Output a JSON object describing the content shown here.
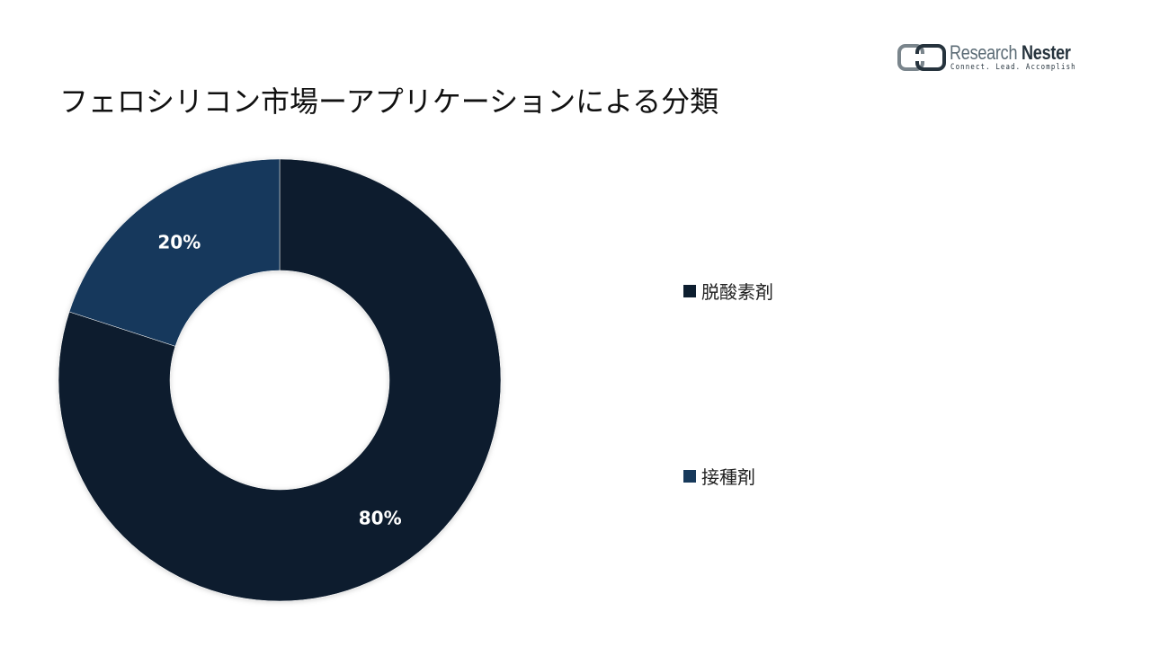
{
  "title": "フェロシリコン市場ーアプリケーションによる分類",
  "logo": {
    "name_regular": "Research ",
    "name_bold": "Nester",
    "tagline": "Connect. Lead. Accomplish"
  },
  "colors": {
    "dark": "#0d1e2f",
    "mid": "#17395b",
    "logo_gray": "#7a858c"
  },
  "chart_data": {
    "type": "pie",
    "variant": "donut",
    "title": "フェロシリコン市場ーアプリケーションによる分類",
    "categories": [
      "脱酸素剤",
      "接種剤"
    ],
    "values": [
      80,
      20
    ],
    "data_labels": [
      "80%",
      "20%"
    ],
    "colors": [
      "#0d1e2f",
      "#17395b"
    ],
    "legend_position": "right"
  },
  "legend": {
    "items": [
      {
        "label": "脱酸素剤",
        "color": "#0d1e2f"
      },
      {
        "label": "接種剤",
        "color": "#17395b"
      }
    ]
  }
}
